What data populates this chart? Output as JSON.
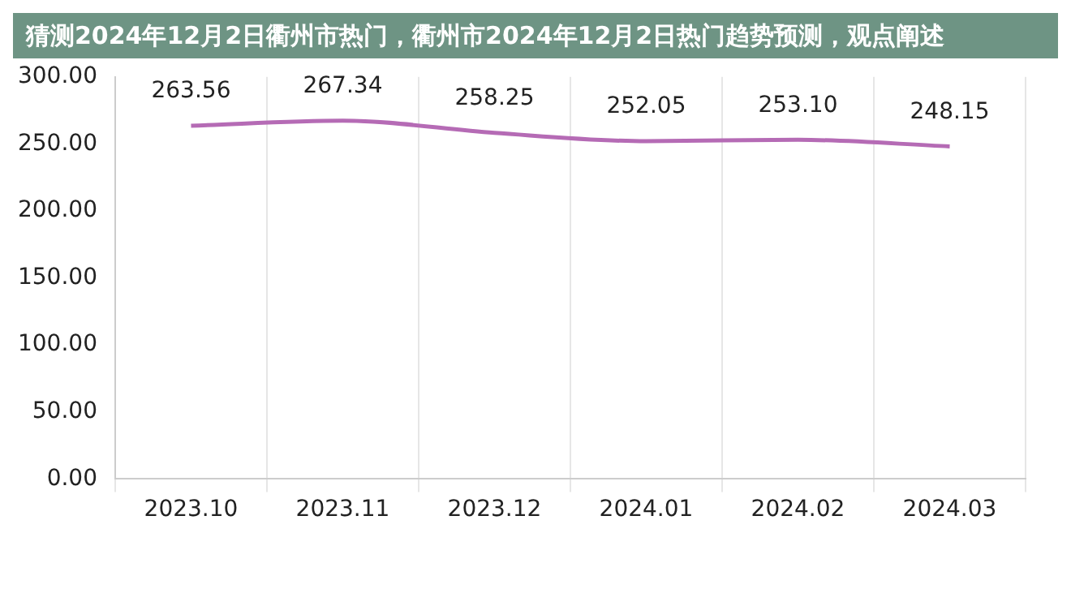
{
  "chart_data": {
    "type": "line",
    "title": "猜测2024年12月2日衢州市热门，衢州市2024年12月2日热门趋势预测，观点阐述",
    "categories": [
      "2023.10",
      "2023.11",
      "2023.12",
      "2024.01",
      "2024.02",
      "2024.03"
    ],
    "series": [
      {
        "color": "#b56bb5",
        "values": [
          263.56,
          267.34,
          258.25,
          252.05,
          253.1,
          248.15
        ],
        "value_labels": [
          "263.56",
          "267.34",
          "258.25",
          "252.05",
          "253.10",
          "248.15"
        ]
      }
    ],
    "ylim": [
      0,
      300
    ],
    "yticks": [
      {
        "value": 0,
        "label": "0.00"
      },
      {
        "value": 50,
        "label": "50.00"
      },
      {
        "value": 100,
        "label": "100.00"
      },
      {
        "value": 150,
        "label": "150.00"
      },
      {
        "value": 200,
        "label": "200.00"
      },
      {
        "value": 250,
        "label": "250.00"
      },
      {
        "value": 300,
        "label": "300.00"
      }
    ],
    "grid": "x",
    "legend": false,
    "marker": "none",
    "line_style": "solid"
  }
}
